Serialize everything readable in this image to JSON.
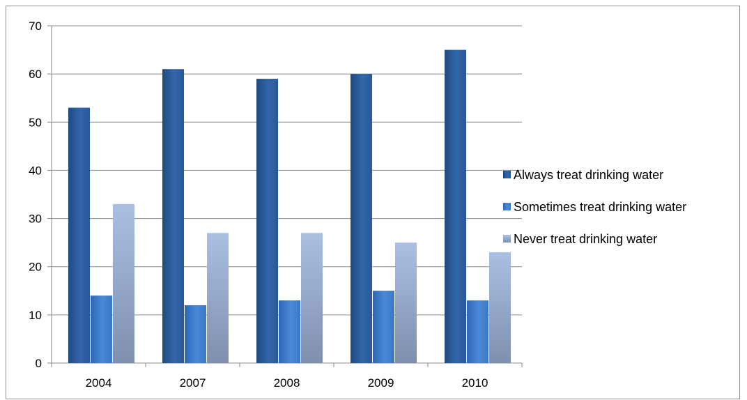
{
  "chart_data": {
    "type": "bar",
    "title": "",
    "xlabel": "",
    "ylabel": "",
    "categories": [
      "2004",
      "2007",
      "2008",
      "2009",
      "2010"
    ],
    "series": [
      {
        "name": "Always treat drinking water",
        "values": [
          53,
          61,
          59,
          60,
          65
        ],
        "color": "#2c5c9a"
      },
      {
        "name": "Sometimes treat drinking water",
        "values": [
          14,
          12,
          13,
          15,
          13
        ],
        "color": "#3f7fcf"
      },
      {
        "name": "Never treat drinking water",
        "values": [
          33,
          27,
          27,
          25,
          23
        ],
        "color": "#9fb6d8"
      }
    ],
    "ylim": [
      0,
      70
    ],
    "yticks": [
      0,
      10,
      20,
      30,
      40,
      50,
      60,
      70
    ],
    "grid": true,
    "legend_position": "right"
  }
}
